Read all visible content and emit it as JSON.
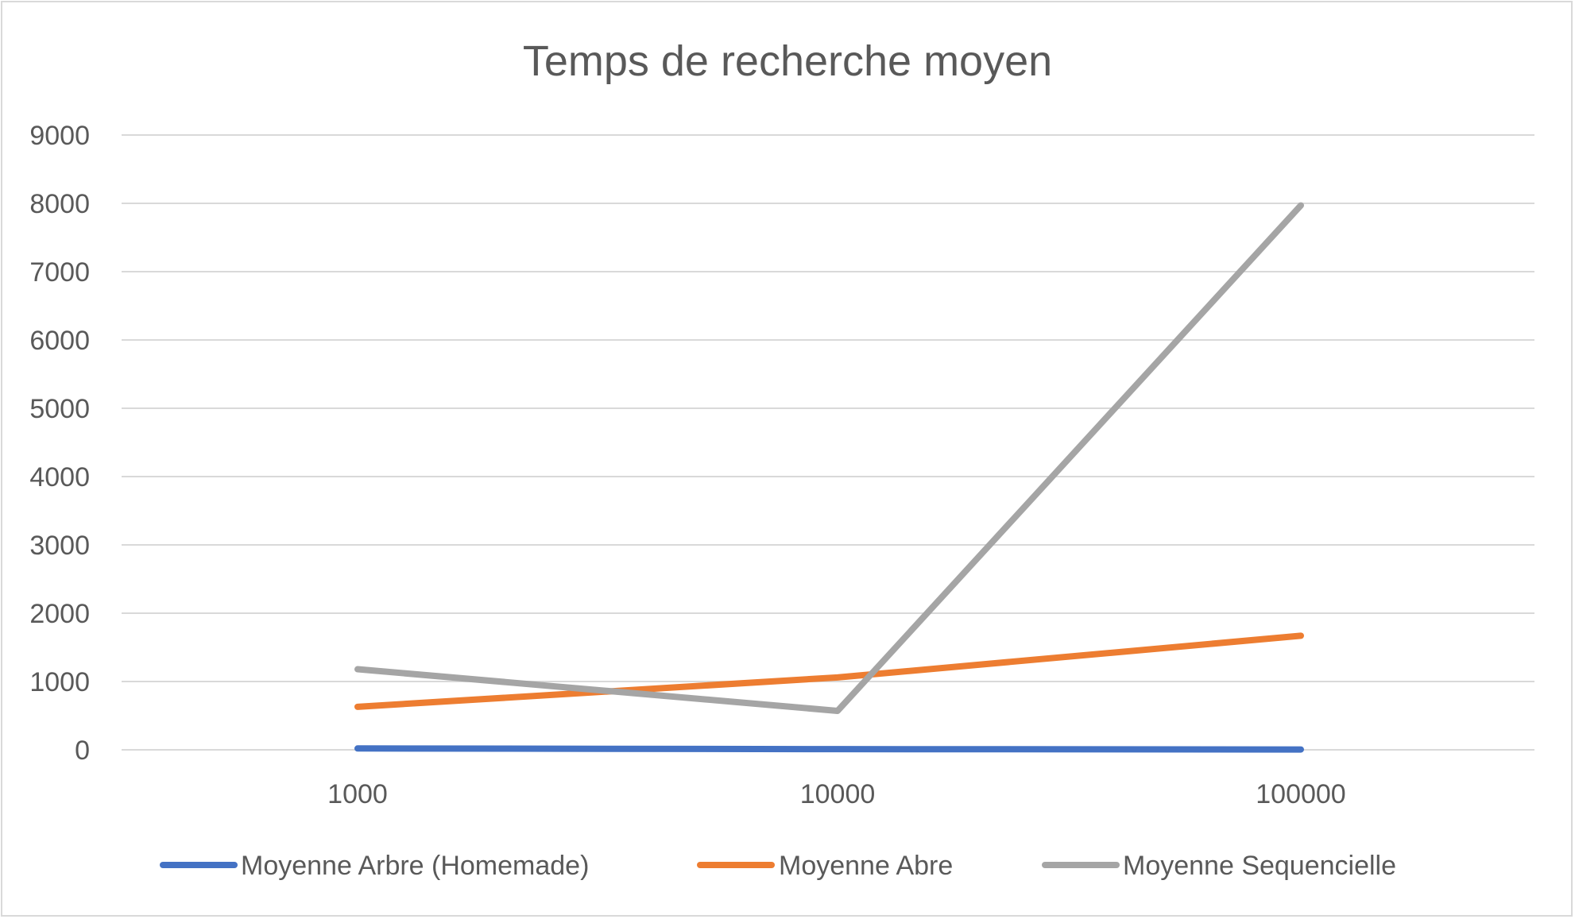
{
  "chart_data": {
    "type": "line",
    "title": "Temps de recherche moyen",
    "categories": [
      "1000",
      "10000",
      "100000"
    ],
    "series": [
      {
        "name": "Moyenne Arbre (Homemade)",
        "color": "#4472c4",
        "values": [
          20,
          10,
          5
        ]
      },
      {
        "name": "Moyenne Abre",
        "color": "#ed7d31",
        "values": [
          630,
          1060,
          1670
        ]
      },
      {
        "name": "Moyenne Sequencielle",
        "color": "#a5a5a5",
        "values": [
          1180,
          570,
          7970
        ]
      }
    ],
    "ylim": [
      0,
      9000
    ],
    "yticks": [
      "0",
      "1000",
      "2000",
      "3000",
      "4000",
      "5000",
      "6000",
      "7000",
      "8000",
      "9000"
    ],
    "grid": true,
    "legend": "bottom",
    "xlabel": "",
    "ylabel": ""
  }
}
